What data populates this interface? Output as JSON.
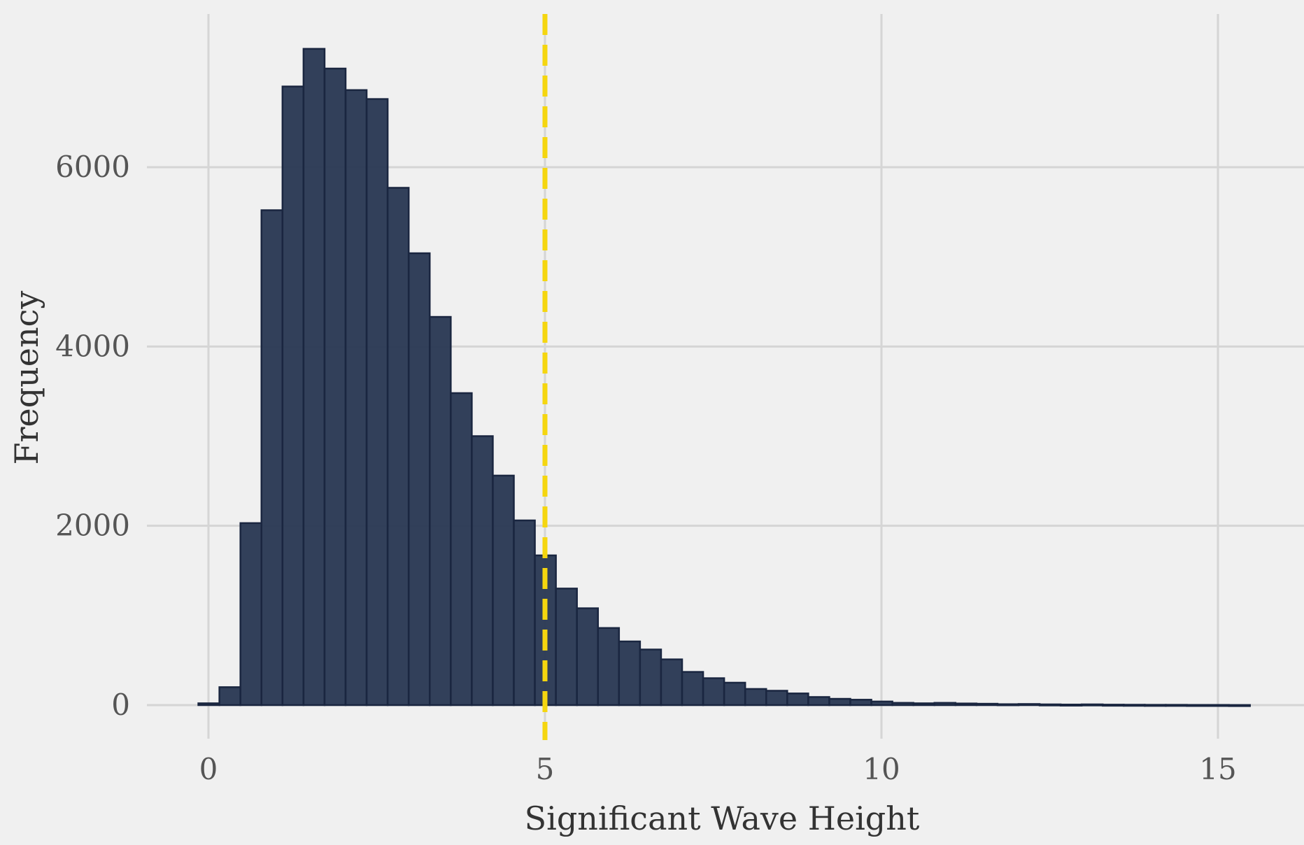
{
  "chart_data": {
    "type": "bar",
    "subtype": "histogram",
    "xlabel": "Significant Wave Height",
    "ylabel": "Frequency",
    "xlim": [
      -0.9,
      15.9
    ],
    "ylim": [
      -500,
      7800
    ],
    "x_ticks": [
      0,
      5,
      10,
      15
    ],
    "y_ticks": [
      0,
      2000,
      4000,
      6000
    ],
    "bin_width": 0.3125,
    "bin_start": -0.15,
    "values": [
      20,
      200,
      2030,
      5520,
      6900,
      7320,
      7100,
      6860,
      6760,
      5770,
      5040,
      4330,
      3480,
      3000,
      2560,
      2060,
      1670,
      1300,
      1080,
      860,
      710,
      620,
      510,
      370,
      300,
      250,
      180,
      160,
      130,
      90,
      70,
      60,
      40,
      25,
      20,
      25,
      18,
      15,
      10,
      12,
      8,
      6,
      8,
      5,
      4,
      3,
      3,
      2,
      2,
      1
    ],
    "reference_line": {
      "x": 5,
      "style": "dashed",
      "color": "#f5d60f"
    },
    "bar_color": "#2b3a55",
    "bar_edge_color": "#1a2640",
    "grid": true,
    "grid_color": "#d5d5d5",
    "background": "#f0f0f0"
  }
}
